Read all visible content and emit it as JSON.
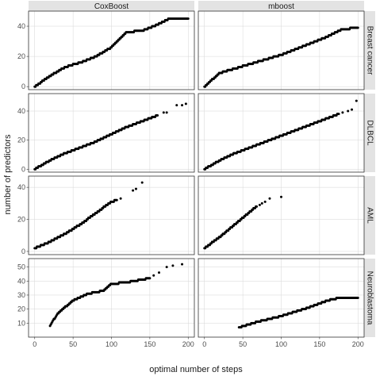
{
  "chart_data": {
    "type": "scatter",
    "xlabel": "optimal number of steps",
    "ylabel": "number of predictors",
    "columns": [
      "CoxBoost",
      "mboost"
    ],
    "rows": [
      "Breast cancer",
      "DLBCL",
      "AML",
      "Neuroblastoma"
    ],
    "xlim": [
      -8,
      208
    ],
    "xticks": [
      0,
      50,
      100,
      150,
      200
    ],
    "grid": true,
    "row_axes": [
      {
        "ylim": [
          -2,
          50
        ],
        "yticks": [
          0,
          20,
          40
        ]
      },
      {
        "ylim": [
          -2,
          52
        ],
        "yticks": [
          0,
          20,
          40
        ]
      },
      {
        "ylim": [
          -2,
          47
        ],
        "yticks": [
          0,
          20,
          40
        ]
      },
      {
        "ylim": [
          0,
          56
        ],
        "yticks": [
          10,
          20,
          30,
          40,
          50
        ]
      }
    ],
    "panels": [
      {
        "row": "Breast cancer",
        "col": "CoxBoost",
        "segments": [
          [
            0,
            0
          ],
          [
            20,
            7
          ],
          [
            40,
            13
          ],
          [
            60,
            16
          ],
          [
            80,
            20
          ],
          [
            100,
            26
          ],
          [
            120,
            36
          ],
          [
            140,
            37
          ],
          [
            160,
            41
          ],
          [
            175,
            45
          ],
          [
            200,
            45
          ]
        ],
        "outliers": []
      },
      {
        "row": "Breast cancer",
        "col": "mboost",
        "segments": [
          [
            0,
            0
          ],
          [
            20,
            9
          ],
          [
            40,
            12
          ],
          [
            60,
            15
          ],
          [
            80,
            18
          ],
          [
            100,
            21
          ],
          [
            120,
            25
          ],
          [
            140,
            29
          ],
          [
            160,
            33
          ],
          [
            180,
            38
          ],
          [
            200,
            39
          ]
        ],
        "outliers": []
      },
      {
        "row": "DLBCL",
        "col": "CoxBoost",
        "segments": [
          [
            0,
            0
          ],
          [
            20,
            6
          ],
          [
            40,
            11
          ],
          [
            60,
            15
          ],
          [
            80,
            19
          ],
          [
            100,
            24
          ],
          [
            120,
            29
          ],
          [
            140,
            33
          ],
          [
            160,
            37
          ]
        ],
        "outliers": [
          [
            168,
            39
          ],
          [
            172,
            39
          ],
          [
            185,
            44
          ],
          [
            192,
            44
          ],
          [
            197,
            45
          ]
        ]
      },
      {
        "row": "DLBCL",
        "col": "mboost",
        "segments": [
          [
            0,
            0
          ],
          [
            20,
            6
          ],
          [
            40,
            11
          ],
          [
            60,
            15
          ],
          [
            80,
            19
          ],
          [
            100,
            23
          ],
          [
            120,
            27
          ],
          [
            140,
            31
          ],
          [
            160,
            35
          ],
          [
            175,
            38
          ]
        ],
        "outliers": [
          [
            180,
            39
          ],
          [
            187,
            40
          ],
          [
            192,
            41
          ],
          [
            198,
            47
          ]
        ]
      },
      {
        "row": "AML",
        "col": "CoxBoost",
        "segments": [
          [
            0,
            2
          ],
          [
            20,
            6
          ],
          [
            40,
            11
          ],
          [
            60,
            17
          ],
          [
            80,
            24
          ],
          [
            100,
            31
          ],
          [
            107,
            32
          ]
        ],
        "outliers": [
          [
            112,
            33
          ],
          [
            128,
            38
          ],
          [
            132,
            39
          ],
          [
            140,
            43
          ]
        ]
      },
      {
        "row": "AML",
        "col": "mboost",
        "segments": [
          [
            0,
            2
          ],
          [
            20,
            9
          ],
          [
            40,
            17
          ],
          [
            60,
            25
          ],
          [
            68,
            28
          ]
        ],
        "outliers": [
          [
            72,
            29
          ],
          [
            75,
            30
          ],
          [
            79,
            31
          ],
          [
            85,
            33
          ],
          [
            100,
            34
          ]
        ]
      },
      {
        "row": "Neuroblastoma",
        "col": "CoxBoost",
        "segments": [
          [
            20,
            8
          ],
          [
            30,
            17
          ],
          [
            50,
            26
          ],
          [
            70,
            31
          ],
          [
            90,
            33
          ],
          [
            100,
            38
          ],
          [
            120,
            39
          ],
          [
            150,
            42
          ]
        ],
        "outliers": [
          [
            155,
            44
          ],
          [
            162,
            46
          ],
          [
            172,
            50
          ],
          [
            180,
            51
          ],
          [
            192,
            52
          ]
        ]
      },
      {
        "row": "Neuroblastoma",
        "col": "mboost",
        "segments": [
          [
            45,
            7
          ],
          [
            70,
            11
          ],
          [
            100,
            15
          ],
          [
            130,
            20
          ],
          [
            160,
            26
          ],
          [
            175,
            28
          ],
          [
            200,
            28
          ]
        ],
        "outliers": []
      }
    ]
  }
}
